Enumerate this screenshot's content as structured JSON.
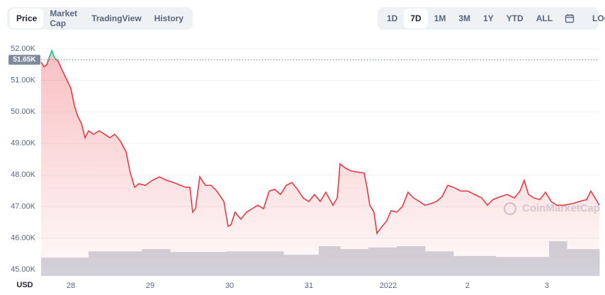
{
  "header": {
    "tabs": [
      "Price",
      "Market Cap",
      "TradingView",
      "History"
    ],
    "active_tab": 0,
    "ranges": [
      "1D",
      "7D",
      "1M",
      "3M",
      "1Y",
      "YTD",
      "ALL"
    ],
    "active_range": 1,
    "scale_toggle": "LOG"
  },
  "chart_data": {
    "type": "line",
    "color": "#ea3943",
    "up_color": "#16c784",
    "grid": true,
    "currency_label": "USD",
    "watermark": "CoinMarketCap",
    "reference": {
      "value": 51650,
      "label": "51.65K"
    },
    "xlim": [
      -0.375,
      6.661
    ],
    "ylim": [
      44800,
      52200
    ],
    "xticks": [
      {
        "value": 0,
        "label": "28"
      },
      {
        "value": 1,
        "label": "29"
      },
      {
        "value": 2,
        "label": "30"
      },
      {
        "value": 3,
        "label": "31"
      },
      {
        "value": 4,
        "label": "2022"
      },
      {
        "value": 5,
        "label": "2"
      },
      {
        "value": 6,
        "label": "3"
      }
    ],
    "yticks": [
      {
        "value": 45000,
        "label": "45.00K"
      },
      {
        "value": 46000,
        "label": "46.00K"
      },
      {
        "value": 47000,
        "label": "47.00K"
      },
      {
        "value": 48000,
        "label": "48.00K"
      },
      {
        "value": 49000,
        "label": "49.00K"
      },
      {
        "value": 50000,
        "label": "50.00K"
      },
      {
        "value": 51000,
        "label": "51.00K"
      },
      {
        "value": 52000,
        "label": "52.00K"
      }
    ],
    "x": [
      -0.375,
      -0.339,
      -0.304,
      -0.268,
      -0.241,
      -0.205,
      -0.161,
      -0.107,
      -0.045,
      0,
      0.045,
      0.089,
      0.134,
      0.179,
      0.223,
      0.286,
      0.357,
      0.429,
      0.491,
      0.554,
      0.625,
      0.696,
      0.75,
      0.804,
      0.857,
      0.938,
      1.027,
      1.116,
      1.205,
      1.295,
      1.384,
      1.446,
      1.5,
      1.536,
      1.571,
      1.625,
      1.696,
      1.768,
      1.839,
      1.929,
      1.982,
      2.018,
      2.071,
      2.143,
      2.214,
      2.286,
      2.357,
      2.429,
      2.5,
      2.571,
      2.643,
      2.714,
      2.786,
      2.857,
      2.929,
      3,
      3.071,
      3.143,
      3.214,
      3.304,
      3.357,
      3.393,
      3.464,
      3.536,
      3.643,
      3.696,
      3.732,
      3.768,
      3.821,
      3.857,
      3.911,
      3.982,
      4.036,
      4.107,
      4.179,
      4.25,
      4.321,
      4.393,
      4.464,
      4.536,
      4.607,
      4.679,
      4.75,
      4.821,
      4.911,
      5,
      5.089,
      5.179,
      5.25,
      5.321,
      5.411,
      5.5,
      5.589,
      5.661,
      5.714,
      5.768,
      5.839,
      5.911,
      5.982,
      6.054,
      6.125,
      6.214,
      6.321,
      6.411,
      6.5,
      6.554,
      6.607,
      6.661
    ],
    "values": [
      51580,
      51430,
      51490,
      51760,
      51940,
      51720,
      51610,
      51310,
      50980,
      50750,
      50190,
      49850,
      49630,
      49180,
      49400,
      49290,
      49400,
      49290,
      49180,
      49290,
      49070,
      48730,
      48060,
      47610,
      47720,
      47670,
      47830,
      47940,
      47830,
      47760,
      47670,
      47610,
      47610,
      46820,
      46930,
      47940,
      47670,
      47670,
      47490,
      47160,
      46370,
      46420,
      46820,
      46600,
      46820,
      46930,
      47040,
      46930,
      47490,
      47540,
      47380,
      47670,
      47760,
      47540,
      47270,
      47160,
      47380,
      47160,
      47450,
      47040,
      47270,
      48350,
      48210,
      48120,
      48080,
      48060,
      47610,
      47040,
      46820,
      46150,
      46330,
      46550,
      46870,
      46820,
      47000,
      47450,
      47270,
      47160,
      47040,
      47090,
      47160,
      47310,
      47670,
      47610,
      47490,
      47490,
      47380,
      47270,
      47040,
      47220,
      47310,
      47380,
      47270,
      47490,
      47830,
      47380,
      47270,
      47220,
      47450,
      47160,
      47040,
      47040,
      47090,
      47160,
      47220,
      47490,
      47270,
      47040
    ],
    "volume": {
      "color": "#d1d4dc",
      "bins": [
        -0.375,
        0.223,
        0.893,
        1.25,
        1.964,
        2.679,
        3.125,
        3.393,
        3.75,
        4.107,
        4.464,
        4.821,
        5.357,
        6.027,
        6.25,
        6.661
      ],
      "values": [
        45380,
        45580,
        45650,
        45560,
        45580,
        45470,
        45740,
        45650,
        45700,
        45740,
        45580,
        45430,
        45400,
        45900,
        45650
      ]
    }
  }
}
